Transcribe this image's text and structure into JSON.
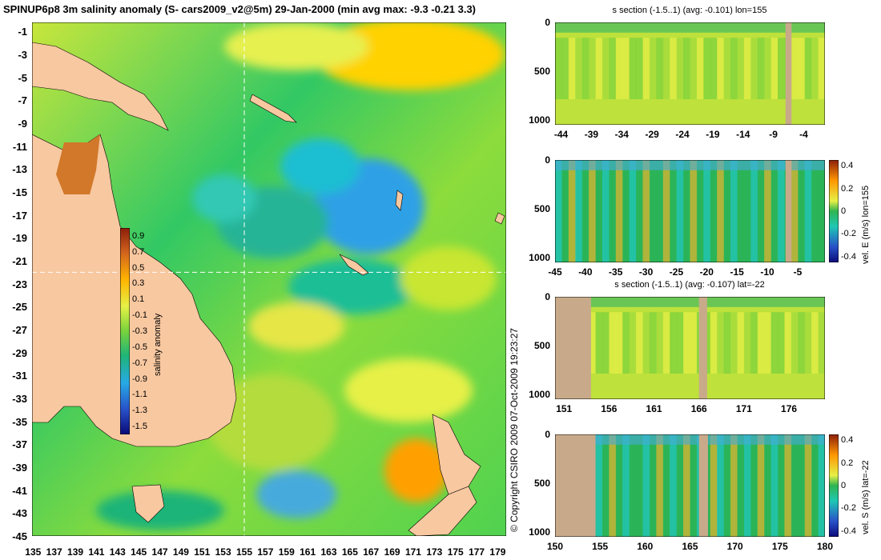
{
  "title": "SPINUP6p8 3m salinity anomaly (S- cars2009_v2@5m) 29-Jan-2000 (min avg max: -9.3 -0.21 3.3)",
  "copyright": "© Copyright CSIRO 2009   07-Oct-2009 19:23:27",
  "colors": {
    "land": "#f8c8a0",
    "section_land": "#c8aa8a",
    "crosshair": "#ffffff"
  },
  "chart_data": [
    {
      "type": "heatmap",
      "name": "main-map",
      "x_ticks": [
        "135",
        "137",
        "139",
        "141",
        "143",
        "145",
        "147",
        "149",
        "151",
        "153",
        "155",
        "157",
        "159",
        "161",
        "163",
        "165",
        "167",
        "169",
        "171",
        "173",
        "175",
        "177",
        "179"
      ],
      "y_ticks": [
        "-1",
        "-3",
        "-5",
        "-7",
        "-9",
        "-11",
        "-13",
        "-15",
        "-17",
        "-19",
        "-21",
        "-23",
        "-25",
        "-27",
        "-29",
        "-31",
        "-33",
        "-35",
        "-37",
        "-39",
        "-41",
        "-43",
        "-45"
      ],
      "xlim": [
        134.9,
        179.8
      ],
      "ylim": [
        -45,
        -0.2
      ],
      "crosshair": {
        "lon": 155,
        "lat": -22
      },
      "colorbar": {
        "label": "salinity anomaly",
        "ticks": [
          "0.9",
          "0.7",
          "0.5",
          "0.3",
          "0.1",
          "-0.1",
          "-0.3",
          "-0.5",
          "-0.7",
          "-0.9",
          "-1.1",
          "-1.3",
          "-1.5"
        ],
        "range": [
          -1.6,
          1.0
        ]
      }
    },
    {
      "type": "heatmap",
      "name": "section-1",
      "title": "s section (-1.5..1) (avg: -0.101) lon=155",
      "x_ticks": [
        "-44",
        "-39",
        "-34",
        "-29",
        "-24",
        "-19",
        "-14",
        "-9",
        "-4"
      ],
      "y_ticks": [
        "0",
        "500",
        "1000"
      ],
      "xlim": [
        -45,
        -0.5
      ],
      "ylim": [
        1050,
        0
      ]
    },
    {
      "type": "heatmap",
      "name": "section-2",
      "x_ticks": [
        "-45",
        "-40",
        "-35",
        "-30",
        "-25",
        "-20",
        "-15",
        "-10",
        "-5"
      ],
      "y_ticks": [
        "0",
        "500",
        "1000"
      ],
      "xlim": [
        -45,
        -0.5
      ],
      "ylim": [
        1050,
        0
      ],
      "colorbar": {
        "label": "vel. E (m/s) lon=155",
        "ticks": [
          "0.4",
          "0.2",
          "0",
          "-0.2",
          "-0.4"
        ],
        "range": [
          -0.45,
          0.45
        ]
      }
    },
    {
      "type": "heatmap",
      "name": "section-3",
      "title": "s section (-1.5..1) (avg: -0.107) lat=-22",
      "x_ticks": [
        "151",
        "156",
        "161",
        "166",
        "171",
        "176"
      ],
      "y_ticks": [
        "0",
        "500",
        "1000"
      ],
      "xlim": [
        150,
        180
      ],
      "ylim": [
        1050,
        0
      ]
    },
    {
      "type": "heatmap",
      "name": "section-4",
      "x_ticks": [
        "150",
        "155",
        "160",
        "165",
        "170",
        "175",
        "180"
      ],
      "y_ticks": [
        "0",
        "500",
        "1000"
      ],
      "xlim": [
        150,
        180
      ],
      "ylim": [
        1050,
        0
      ],
      "colorbar": {
        "label": "vel. S (m/s) lat=-22",
        "ticks": [
          "0.4",
          "0.2",
          "0",
          "-0.2",
          "-0.4"
        ],
        "range": [
          -0.45,
          0.45
        ]
      }
    }
  ]
}
